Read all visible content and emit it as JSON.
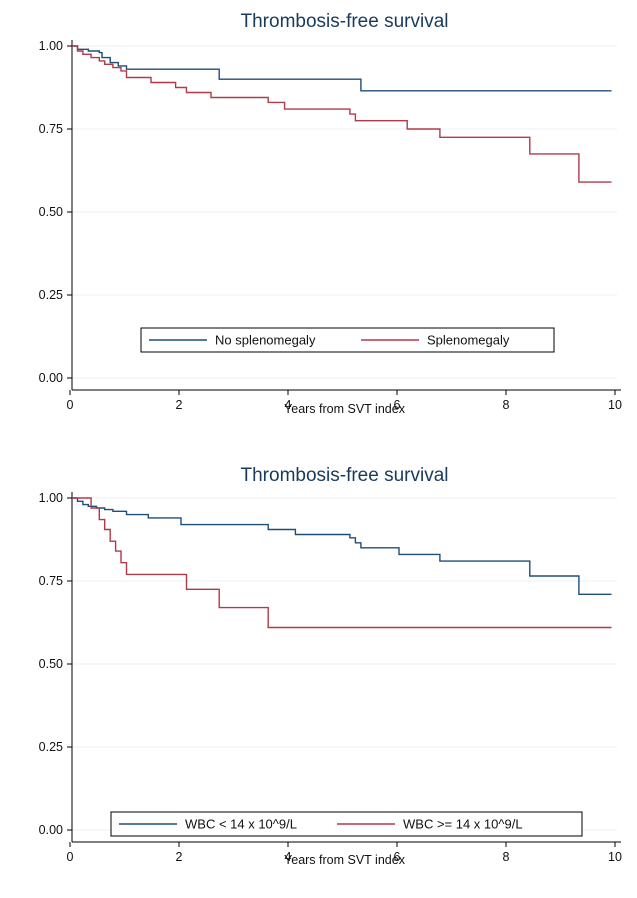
{
  "chart_data": [
    {
      "type": "line",
      "title": "Thrombosis-free survival",
      "xlabel": "Years from SVT index",
      "ylabel": "",
      "xlim": [
        0,
        10
      ],
      "ylim": [
        0,
        1
      ],
      "xticks": [
        "0",
        "2",
        "4",
        "6",
        "8",
        "10"
      ],
      "yticks": [
        "0.00",
        "0.25",
        "0.50",
        "0.75",
        "1.00"
      ],
      "grid": true,
      "legend_position": "bottom-center",
      "series": [
        {
          "name": "No splenomegaly",
          "color": "#1f4e79",
          "x": [
            0,
            0.1,
            0.3,
            0.5,
            0.55,
            0.7,
            0.85,
            1.0,
            2.7,
            5.3,
            9.9
          ],
          "y": [
            1.0,
            0.99,
            0.985,
            0.98,
            0.965,
            0.95,
            0.94,
            0.93,
            0.9,
            0.865,
            0.865
          ]
        },
        {
          "name": "Splenomegaly",
          "color": "#b03a48",
          "x": [
            0,
            0.1,
            0.2,
            0.35,
            0.5,
            0.6,
            0.75,
            0.9,
            1.0,
            1.45,
            1.9,
            2.1,
            2.55,
            3.6,
            3.9,
            5.1,
            5.2,
            6.15,
            6.75,
            8.4,
            9.3,
            9.9
          ],
          "y": [
            1.0,
            0.985,
            0.975,
            0.965,
            0.955,
            0.945,
            0.935,
            0.925,
            0.905,
            0.89,
            0.875,
            0.86,
            0.845,
            0.83,
            0.81,
            0.795,
            0.775,
            0.75,
            0.725,
            0.675,
            0.59,
            0.59
          ]
        }
      ]
    },
    {
      "type": "line",
      "title": "Thrombosis-free survival",
      "xlabel": "Years from SVT index",
      "ylabel": "",
      "xlim": [
        0,
        10
      ],
      "ylim": [
        0,
        1
      ],
      "xticks": [
        "0",
        "2",
        "4",
        "6",
        "8",
        "10"
      ],
      "yticks": [
        "0.00",
        "0.25",
        "0.50",
        "0.75",
        "1.00"
      ],
      "grid": true,
      "legend_position": "bottom-center",
      "series": [
        {
          "name": "WBC < 14 x 10^9/L",
          "color": "#1f4e79",
          "x": [
            0,
            0.1,
            0.2,
            0.3,
            0.45,
            0.6,
            0.75,
            1.0,
            1.4,
            2.0,
            3.6,
            4.1,
            5.1,
            5.2,
            5.3,
            6.0,
            6.75,
            8.4,
            9.3,
            9.9
          ],
          "y": [
            1.0,
            0.99,
            0.98,
            0.975,
            0.97,
            0.965,
            0.96,
            0.95,
            0.94,
            0.92,
            0.905,
            0.89,
            0.88,
            0.865,
            0.85,
            0.83,
            0.81,
            0.765,
            0.71,
            0.71
          ],
          "steps": true
        },
        {
          "name": "WBC >= 14 x 10^9/L",
          "color": "#b03a48",
          "x": [
            0,
            0.35,
            0.5,
            0.6,
            0.7,
            0.8,
            0.9,
            1.0,
            2.1,
            2.7,
            3.6,
            9.9
          ],
          "y": [
            1.0,
            0.97,
            0.935,
            0.905,
            0.87,
            0.84,
            0.805,
            0.77,
            0.725,
            0.67,
            0.61,
            0.61
          ]
        }
      ]
    }
  ]
}
